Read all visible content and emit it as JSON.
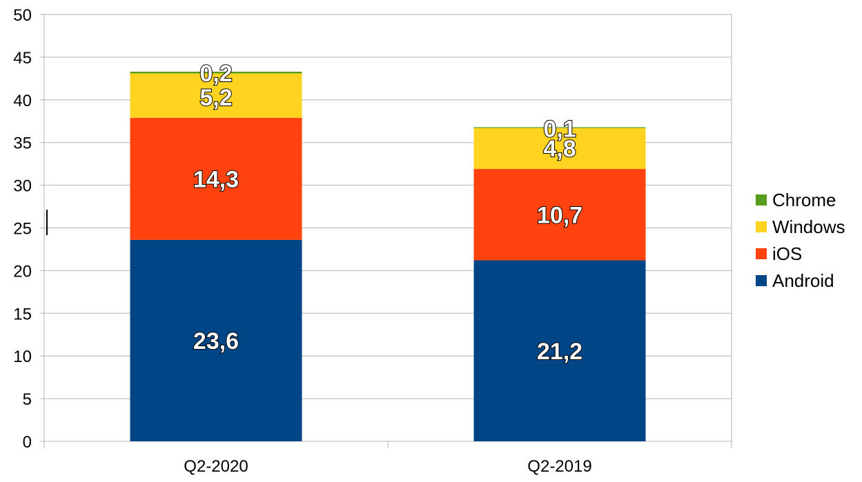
{
  "chart_data": {
    "type": "bar",
    "stacked": true,
    "categories": [
      "Q2-2020",
      "Q2-2019"
    ],
    "series": [
      {
        "name": "Android",
        "values": [
          23.6,
          21.2
        ],
        "labels": [
          "23,6",
          "21,2"
        ],
        "color": "#004586"
      },
      {
        "name": "iOS",
        "values": [
          14.3,
          10.7
        ],
        "labels": [
          "14,3",
          "10,7"
        ],
        "color": "#ff420e"
      },
      {
        "name": "Windows",
        "values": [
          5.2,
          4.8
        ],
        "labels": [
          "5,2",
          "4,8"
        ],
        "color": "#ffd320"
      },
      {
        "name": "Chrome",
        "values": [
          0.2,
          0.1
        ],
        "labels": [
          "0,2",
          "0,1"
        ],
        "color": "#579d1c"
      }
    ],
    "ylim": [
      0,
      50
    ],
    "yticks": [
      "0",
      "5",
      "10",
      "15",
      "20",
      "25",
      "30",
      "35",
      "40",
      "45",
      "50"
    ],
    "grid": true,
    "legend_position": "right",
    "legend_order": [
      "Chrome",
      "Windows",
      "iOS",
      "Android"
    ],
    "title": "",
    "xlabel": "",
    "ylabel": ""
  }
}
